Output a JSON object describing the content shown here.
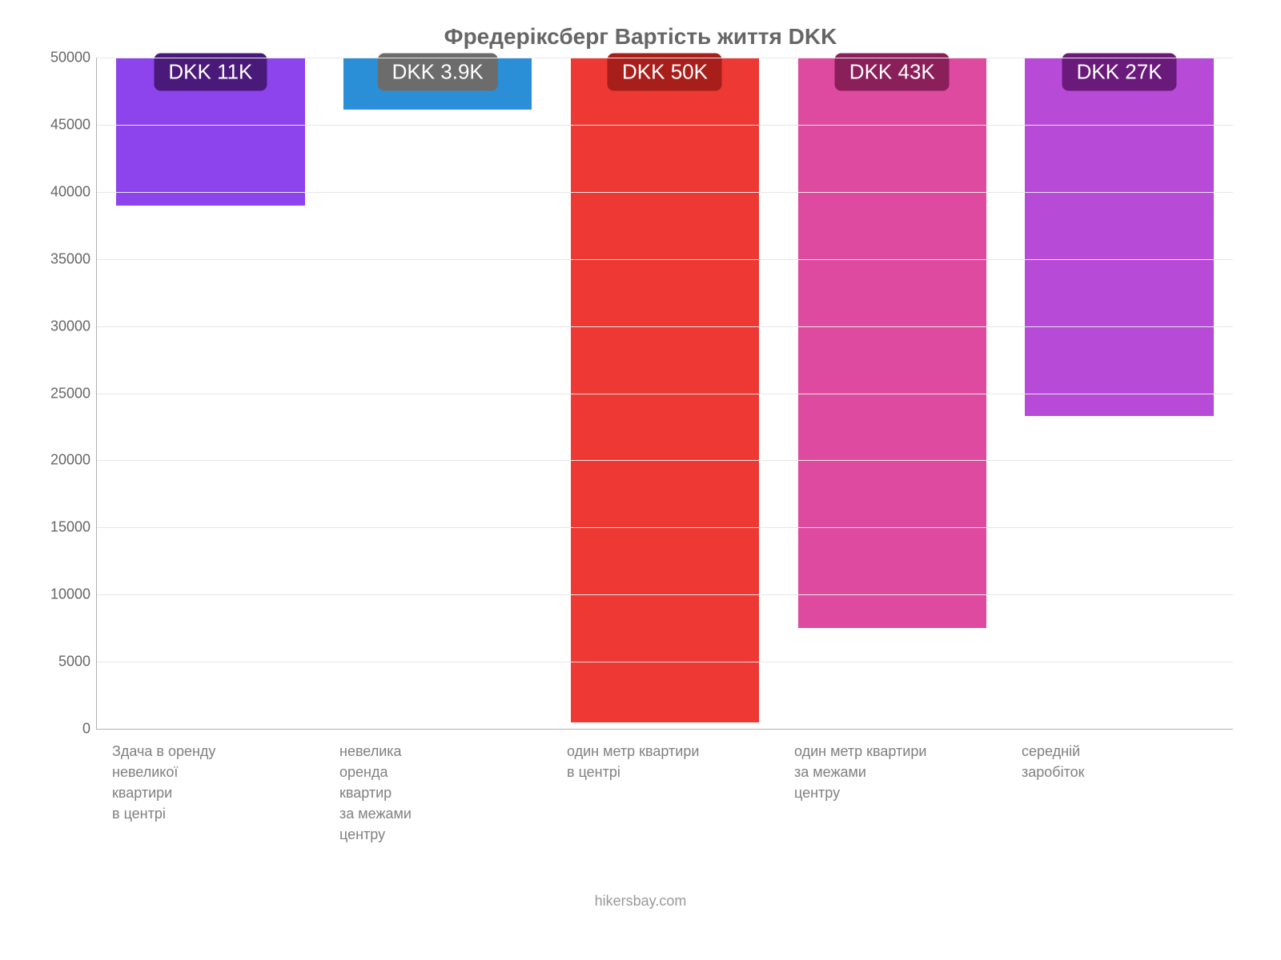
{
  "chart": {
    "type": "bar",
    "title": "Фредеріксберг Вартість життя DKK",
    "title_fontsize": 28,
    "title_color": "#666666",
    "background_color": "#ffffff",
    "grid_color": "#e6e6e6",
    "axis_color": "#b0b0b0",
    "label_color": "#808080",
    "ytick_label_color": "#666666",
    "label_fontsize": 18,
    "badge_fontsize": 26,
    "bar_width_ratio": 0.83,
    "ylim": [
      0,
      50000
    ],
    "ytick_step": 5000,
    "yticks": [
      0,
      5000,
      10000,
      15000,
      20000,
      25000,
      30000,
      35000,
      40000,
      45000,
      50000
    ],
    "categories": [
      "Здача в оренду\nневеликої\nквартири\nв центрі",
      "невелика\nоренда\nквартир\nза межами\nцентру",
      "один метр квартири\nв центрі",
      "один метр квартири\nза межами\nцентру",
      "середній\nзаробіток"
    ],
    "values": [
      11000,
      3900,
      49500,
      42500,
      26700
    ],
    "bar_colors": [
      "#8e44ec",
      "#2a8fd6",
      "#ed3833",
      "#de4aa0",
      "#b84ad8"
    ],
    "badge_bg_colors": [
      "#4a1a7a",
      "#6c6c6c",
      "#a81e1a",
      "#8a1f5a",
      "#6a1a7a"
    ],
    "badge_text_color": "#ffffff",
    "badge_labels": [
      "DKK 11K",
      "DKK 3.9K",
      "DKK 50K",
      "DKK 43K",
      "DKK 27K"
    ],
    "footer": "hikersbay.com",
    "footer_color": "#999999"
  }
}
